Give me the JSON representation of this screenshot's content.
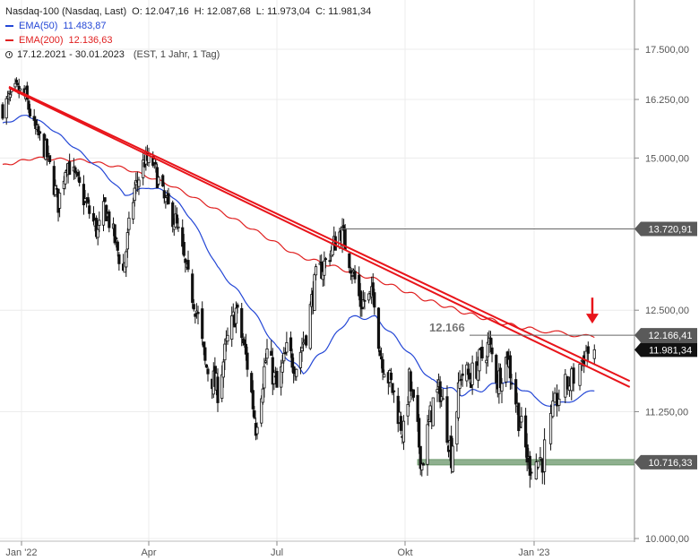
{
  "legend": {
    "instrument": "Nasdaq-100 (Nasdaq, Last)",
    "open": "O: 12.047,16",
    "high": "H: 12.087,68",
    "low": "L: 11.973,04",
    "close": "C: 11.981,34",
    "ema50_label": "EMA(50)",
    "ema50_value": "11.483,87",
    "ema200_label": "EMA(200)",
    "ema200_value": "12.136,63",
    "range": "17.12.2021 - 30.01.2023",
    "settings": "(EST, 1 Jahr, 1 Tag)",
    "icon": "clock-icon"
  },
  "colors": {
    "candle": "#111111",
    "ema50": "#2447d6",
    "ema200": "#e02020",
    "trendline": "#e8141a",
    "support": "#6f9a6f",
    "arrow": "#e8141a"
  },
  "chart_data": {
    "type": "candlestick",
    "x_range": [
      "2021-12-17",
      "2023-01-30"
    ],
    "x_ticks": [
      {
        "date": "2022-01-01",
        "label": "Jan '22"
      },
      {
        "date": "2022-04-01",
        "label": "Apr"
      },
      {
        "date": "2022-07-01",
        "label": "Jul"
      },
      {
        "date": "2022-10-01",
        "label": "Okt"
      },
      {
        "date": "2023-01-01",
        "label": "Jan '23"
      }
    ],
    "y_ticks": [
      {
        "value": 10000,
        "label": "10.000,00"
      },
      {
        "value": 11250,
        "label": "11.250,00"
      },
      {
        "value": 12500,
        "label": "12.500,00"
      },
      {
        "value": 15000,
        "label": "15.000,00"
      },
      {
        "value": 16250,
        "label": "16.250,00"
      },
      {
        "value": 17500,
        "label": "17.500,00"
      }
    ],
    "price_tags": [
      {
        "value": 13720.91,
        "label": "13.720,91",
        "style": "gray"
      },
      {
        "value": 12166.41,
        "label": "12.166,41",
        "style": "gray"
      },
      {
        "value": 11981.34,
        "label": "11.981,34",
        "style": "dark"
      },
      {
        "value": 10716.33,
        "label": "10.716,33",
        "style": "gray"
      }
    ],
    "annotations": [
      {
        "text": "12.166",
        "date": "2022-11-14",
        "value": 12166
      }
    ],
    "close_path": [
      [
        "2021-12-17",
        16050
      ],
      [
        "2021-12-22",
        16240
      ],
      [
        "2021-12-28",
        16470
      ],
      [
        "2022-01-04",
        16300
      ],
      [
        "2022-01-10",
        15600
      ],
      [
        "2022-01-18",
        15150
      ],
      [
        "2022-01-27",
        14150
      ],
      [
        "2022-02-02",
        14950
      ],
      [
        "2022-02-10",
        14500
      ],
      [
        "2022-02-18",
        14000
      ],
      [
        "2022-02-24",
        13650
      ],
      [
        "2022-03-01",
        14100
      ],
      [
        "2022-03-14",
        13050
      ],
      [
        "2022-03-22",
        14400
      ],
      [
        "2022-03-29",
        14950
      ],
      [
        "2022-04-04",
        14900
      ],
      [
        "2022-04-12",
        14200
      ],
      [
        "2022-04-20",
        13850
      ],
      [
        "2022-04-28",
        13000
      ],
      [
        "2022-05-05",
        12500
      ],
      [
        "2022-05-11",
        11800
      ],
      [
        "2022-05-20",
        11500
      ],
      [
        "2022-05-27",
        12100
      ],
      [
        "2022-06-02",
        12500
      ],
      [
        "2022-06-10",
        11800
      ],
      [
        "2022-06-16",
        11100
      ],
      [
        "2022-06-24",
        11950
      ],
      [
        "2022-07-01",
        11500
      ],
      [
        "2022-07-08",
        11950
      ],
      [
        "2022-07-15",
        11800
      ],
      [
        "2022-07-22",
        12200
      ],
      [
        "2022-07-29",
        12950
      ],
      [
        "2022-08-05",
        13200
      ],
      [
        "2022-08-16",
        13700
      ],
      [
        "2022-08-22",
        13250
      ],
      [
        "2022-08-30",
        12600
      ],
      [
        "2022-09-09",
        12700
      ],
      [
        "2022-09-13",
        11950
      ],
      [
        "2022-09-22",
        11500
      ],
      [
        "2022-09-30",
        11000
      ],
      [
        "2022-10-04",
        11600
      ],
      [
        "2022-10-13",
        10700
      ],
      [
        "2022-10-21",
        11350
      ],
      [
        "2022-10-26",
        11500
      ],
      [
        "2022-11-03",
        10800
      ],
      [
        "2022-11-10",
        11700
      ],
      [
        "2022-11-17",
        11650
      ],
      [
        "2022-11-30",
        12050
      ],
      [
        "2022-12-06",
        11600
      ],
      [
        "2022-12-13",
        11900
      ],
      [
        "2022-12-21",
        11200
      ],
      [
        "2022-12-28",
        10700
      ],
      [
        "2023-01-05",
        10750
      ],
      [
        "2023-01-12",
        11400
      ],
      [
        "2023-01-20",
        11650
      ],
      [
        "2023-01-26",
        11950
      ],
      [
        "2023-01-30",
        11981.34
      ]
    ],
    "ema50_path": [
      [
        "2021-12-17",
        15700
      ],
      [
        "2022-01-05",
        15900
      ],
      [
        "2022-01-20",
        15650
      ],
      [
        "2022-02-10",
        15150
      ],
      [
        "2022-03-01",
        14700
      ],
      [
        "2022-03-15",
        14300
      ],
      [
        "2022-04-01",
        14450
      ],
      [
        "2022-04-15",
        14350
      ],
      [
        "2022-05-01",
        13900
      ],
      [
        "2022-05-20",
        13100
      ],
      [
        "2022-06-10",
        12600
      ],
      [
        "2022-07-01",
        12000
      ],
      [
        "2022-07-20",
        11700
      ],
      [
        "2022-08-05",
        12000
      ],
      [
        "2022-08-22",
        12400
      ],
      [
        "2022-09-10",
        12400
      ],
      [
        "2022-10-01",
        12000
      ],
      [
        "2022-10-20",
        11600
      ],
      [
        "2022-11-10",
        11450
      ],
      [
        "2022-11-25",
        11500
      ],
      [
        "2022-12-10",
        11600
      ],
      [
        "2022-12-25",
        11500
      ],
      [
        "2023-01-10",
        11300
      ],
      [
        "2023-01-30",
        11483.87
      ]
    ],
    "ema200_path": [
      [
        "2021-12-17",
        14850
      ],
      [
        "2022-01-10",
        15000
      ],
      [
        "2022-02-15",
        14950
      ],
      [
        "2022-03-15",
        14800
      ],
      [
        "2022-04-15",
        14500
      ],
      [
        "2022-05-15",
        14100
      ],
      [
        "2022-06-15",
        13700
      ],
      [
        "2022-07-15",
        13300
      ],
      [
        "2022-08-15",
        13100
      ],
      [
        "2022-09-15",
        12900
      ],
      [
        "2022-10-15",
        12650
      ],
      [
        "2022-11-15",
        12450
      ],
      [
        "2022-12-15",
        12300
      ],
      [
        "2023-01-30",
        12136.63
      ]
    ],
    "trendlines": [
      {
        "from": [
          "2021-12-22",
          16550
        ],
        "to": [
          "2023-02-16",
          11600
        ]
      },
      {
        "from": [
          "2021-12-22",
          16520
        ],
        "to": [
          "2023-02-16",
          11530
        ]
      }
    ],
    "horizontal_lines": [
      {
        "value": 13720.91,
        "from": "2022-08-15"
      },
      {
        "value": 12166.41,
        "from": "2022-11-16"
      }
    ],
    "support_zone": {
      "from": "2022-10-10",
      "value": 10716
    }
  }
}
